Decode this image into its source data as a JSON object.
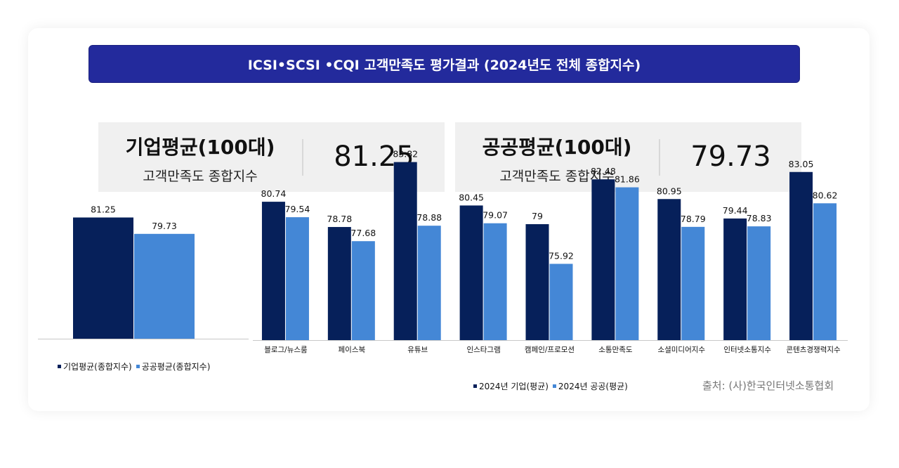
{
  "title": "ICSI•SCSI •CQI 고객만족도 평가결과 (2024년도 전체 종합지수)",
  "stats": [
    {
      "name": "기업평균(100대)",
      "sub": "고객만족도 종합지수",
      "value": "81.25"
    },
    {
      "name": "공공평균(100대)",
      "sub": "고객만족도 종합지수",
      "value": "79.73"
    }
  ],
  "source": "출처: (사)한국인터넷소통협회",
  "colors": {
    "enterprise": "#06205a",
    "public": "#4487d6",
    "banner": "#232a9c"
  },
  "chart_data": [
    {
      "type": "bar",
      "series": [
        {
          "name": "기업평균(종합지수)",
          "values": [
            81.25
          ],
          "labels": [
            "81.25"
          ]
        },
        {
          "name": "공공평균(종합지수)",
          "values": [
            79.73
          ],
          "labels": [
            "79.73"
          ]
        }
      ],
      "categories": [
        ""
      ],
      "ylim": [
        70,
        85
      ],
      "legend": "bottom"
    },
    {
      "type": "bar",
      "categories": [
        "블로그/뉴스룸",
        "페이스북",
        "유튜브",
        "인스타그램",
        "캠페인/프로모션",
        "소통만족도",
        "소셜미디어지수",
        "인터넷소통지수",
        "콘텐츠경쟁력지수"
      ],
      "series": [
        {
          "name": "2024년 기업(평균)",
          "values": [
            80.74,
            78.78,
            83.82,
            80.45,
            79,
            82.48,
            80.95,
            79.44,
            83.05
          ],
          "labels": [
            "80.74",
            "78.78",
            "83.82",
            "80.45",
            "79",
            "82.48",
            "80.95",
            "79.44",
            "83.05"
          ]
        },
        {
          "name": "2024년 공공(평균)",
          "values": [
            79.54,
            77.68,
            78.88,
            79.07,
            75.92,
            81.86,
            78.79,
            78.83,
            80.62
          ],
          "labels": [
            "79.54",
            "77.68",
            "78.88",
            "79.07",
            "75.92",
            "81.86",
            "78.79",
            "78.83",
            "80.62"
          ]
        }
      ],
      "ylim": [
        70,
        85
      ],
      "legend": "bottom"
    }
  ]
}
